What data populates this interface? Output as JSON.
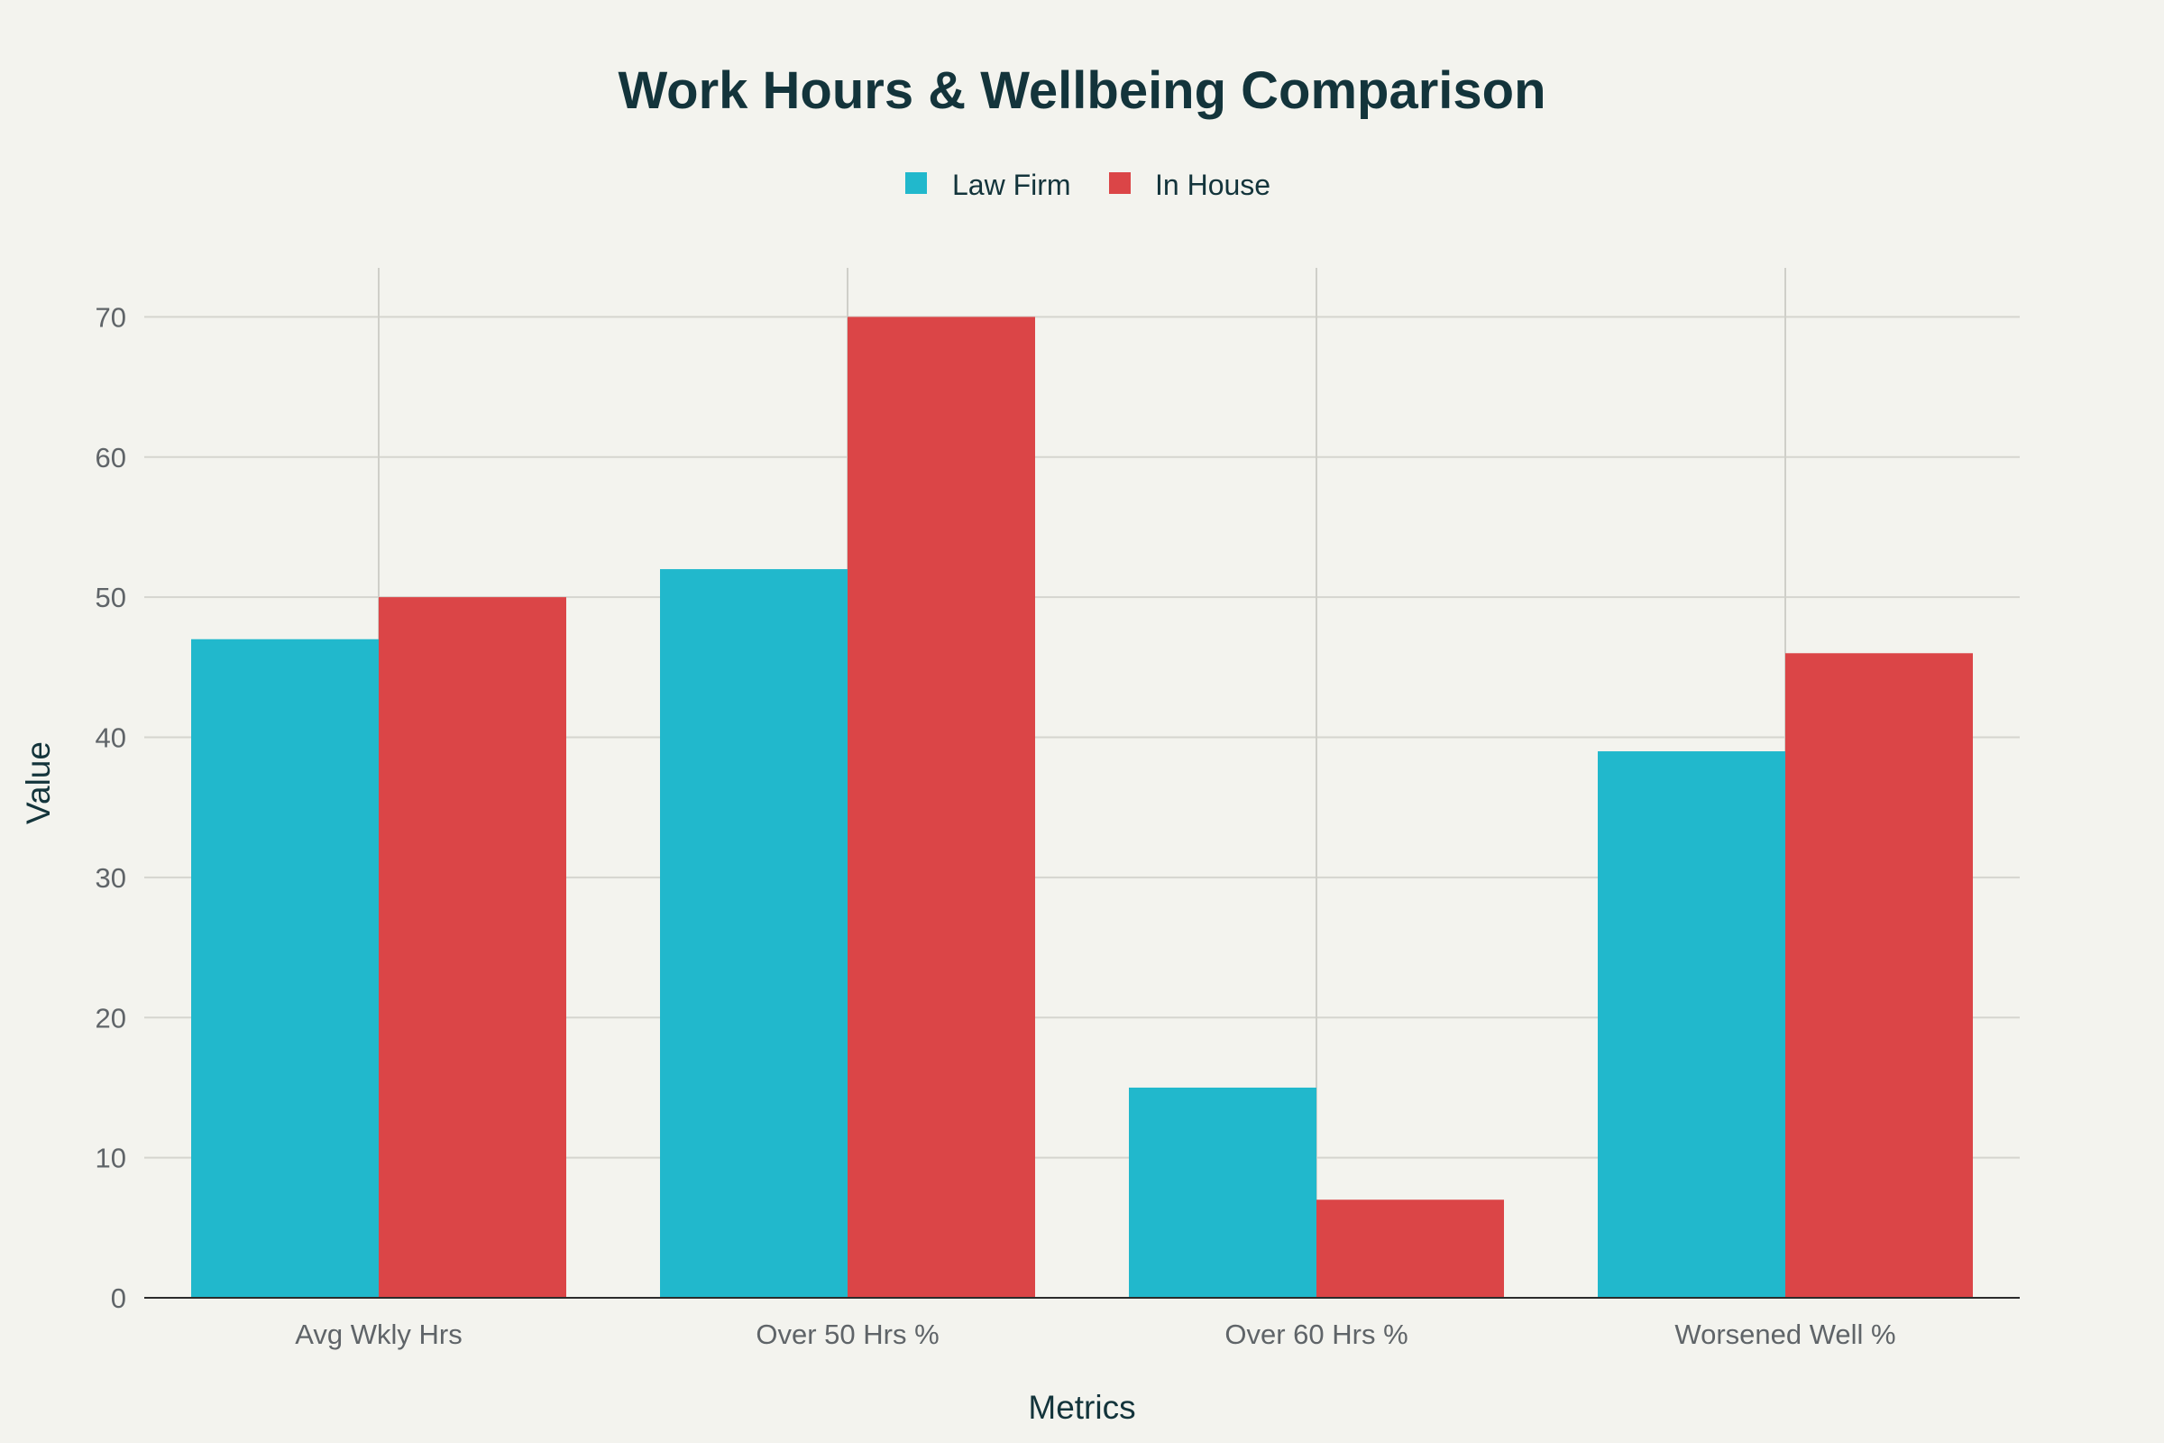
{
  "chart_data": {
    "type": "bar",
    "title": "Work Hours & Wellbeing Comparison",
    "xlabel": "Metrics",
    "ylabel": "Value",
    "categories": [
      "Avg Wkly Hrs",
      "Over 50 Hrs %",
      "Over 60 Hrs %",
      "Worsened Well %"
    ],
    "series": [
      {
        "name": "Law Firm",
        "color": "#21b8cc",
        "values": [
          47,
          52,
          15,
          39
        ]
      },
      {
        "name": "In House",
        "color": "#db4547",
        "values": [
          50,
          70,
          7,
          46
        ]
      }
    ],
    "ylim": [
      0,
      73.5
    ],
    "yticks": [
      0,
      10,
      20,
      30,
      40,
      50,
      60,
      70
    ],
    "grid": true,
    "legend": "top-center"
  }
}
